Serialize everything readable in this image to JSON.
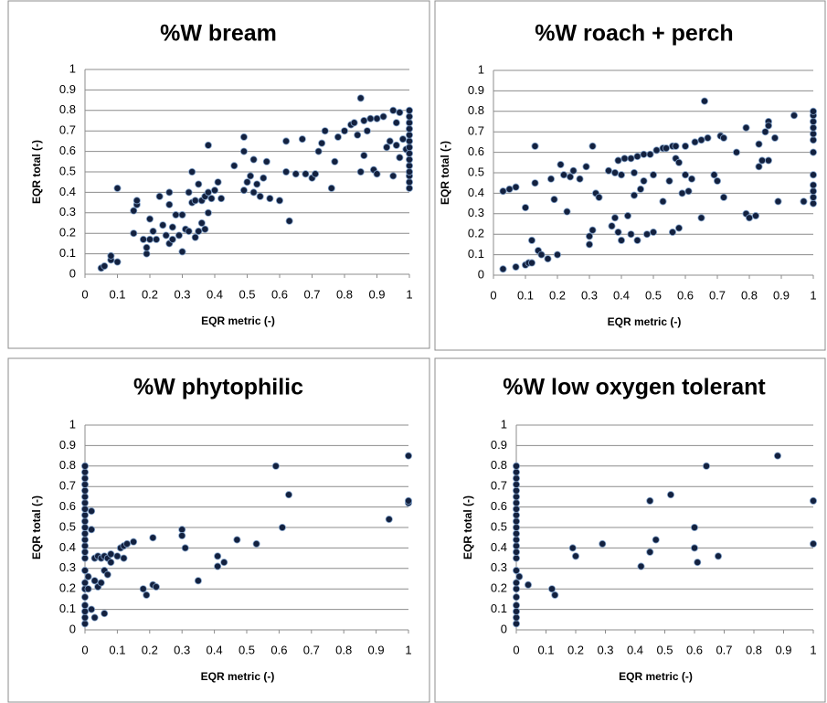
{
  "chart_data": [
    {
      "type": "scatter",
      "title": "%W bream",
      "xlabel": "EQR metric (-)",
      "ylabel": "EQR total (-)",
      "color": "#13213f",
      "grid": true,
      "xlim": [
        0,
        1
      ],
      "ylim": [
        0,
        1
      ],
      "xticks": [
        0,
        0.1,
        0.2,
        0.3,
        0.4,
        0.5,
        0.6,
        0.7,
        0.8,
        0.9,
        1
      ],
      "yticks": [
        0,
        0.1,
        0.2,
        0.3,
        0.4,
        0.5,
        0.6,
        0.7,
        0.8,
        0.9,
        1
      ],
      "x": [
        0.05,
        0.06,
        0.08,
        0.08,
        0.1,
        0.1,
        0.15,
        0.15,
        0.16,
        0.16,
        0.18,
        0.19,
        0.19,
        0.2,
        0.2,
        0.21,
        0.22,
        0.23,
        0.24,
        0.25,
        0.26,
        0.26,
        0.26,
        0.27,
        0.27,
        0.28,
        0.29,
        0.3,
        0.3,
        0.31,
        0.32,
        0.32,
        0.33,
        0.33,
        0.34,
        0.34,
        0.35,
        0.35,
        0.36,
        0.36,
        0.37,
        0.37,
        0.38,
        0.38,
        0.38,
        0.39,
        0.4,
        0.41,
        0.42,
        0.46,
        0.49,
        0.49,
        0.49,
        0.5,
        0.51,
        0.52,
        0.52,
        0.53,
        0.54,
        0.55,
        0.56,
        0.57,
        0.6,
        0.62,
        0.62,
        0.63,
        0.65,
        0.67,
        0.68,
        0.7,
        0.71,
        0.72,
        0.73,
        0.74,
        0.76,
        0.77,
        0.78,
        0.8,
        0.82,
        0.83,
        0.84,
        0.85,
        0.85,
        0.86,
        0.86,
        0.87,
        0.88,
        0.89,
        0.9,
        0.9,
        0.92,
        0.93,
        0.94,
        0.95,
        0.95,
        0.96,
        0.96,
        0.97,
        0.97,
        0.98,
        0.99,
        1,
        1,
        1,
        1,
        1,
        1,
        1,
        1,
        1,
        1,
        1,
        1,
        1,
        1
      ],
      "values": [
        0.03,
        0.04,
        0.07,
        0.09,
        0.06,
        0.42,
        0.2,
        0.31,
        0.34,
        0.36,
        0.17,
        0.1,
        0.13,
        0.17,
        0.27,
        0.21,
        0.17,
        0.38,
        0.24,
        0.19,
        0.15,
        0.34,
        0.4,
        0.17,
        0.23,
        0.29,
        0.19,
        0.11,
        0.29,
        0.22,
        0.21,
        0.4,
        0.35,
        0.5,
        0.18,
        0.36,
        0.21,
        0.44,
        0.25,
        0.36,
        0.22,
        0.38,
        0.63,
        0.4,
        0.3,
        0.37,
        0.41,
        0.45,
        0.37,
        0.53,
        0.41,
        0.6,
        0.67,
        0.45,
        0.48,
        0.56,
        0.4,
        0.44,
        0.38,
        0.47,
        0.55,
        0.37,
        0.36,
        0.65,
        0.5,
        0.26,
        0.49,
        0.66,
        0.49,
        0.47,
        0.49,
        0.6,
        0.64,
        0.7,
        0.42,
        0.55,
        0.67,
        0.7,
        0.73,
        0.74,
        0.68,
        0.86,
        0.5,
        0.75,
        0.58,
        0.7,
        0.76,
        0.51,
        0.76,
        0.49,
        0.77,
        0.62,
        0.65,
        0.8,
        0.48,
        0.74,
        0.63,
        0.79,
        0.57,
        0.66,
        0.61,
        0.42,
        0.45,
        0.48,
        0.5,
        0.53,
        0.56,
        0.59,
        0.62,
        0.65,
        0.68,
        0.71,
        0.74,
        0.77,
        0.8
      ]
    },
    {
      "type": "scatter",
      "title": "%W roach + perch",
      "xlabel": "EQR metric (-)",
      "ylabel": "EQR total (-)",
      "color": "#13213f",
      "grid": true,
      "xlim": [
        0,
        1
      ],
      "ylim": [
        0,
        1
      ],
      "xticks": [
        0,
        0.1,
        0.2,
        0.3,
        0.4,
        0.5,
        0.6,
        0.7,
        0.8,
        0.9,
        1
      ],
      "yticks": [
        0,
        0.1,
        0.2,
        0.3,
        0.4,
        0.5,
        0.6,
        0.7,
        0.8,
        0.9,
        1
      ],
      "x": [
        0.03,
        0.05,
        0.07,
        0.03,
        0.07,
        0.1,
        0.1,
        0.11,
        0.12,
        0.12,
        0.13,
        0.13,
        0.14,
        0.15,
        0.17,
        0.18,
        0.19,
        0.2,
        0.21,
        0.22,
        0.23,
        0.24,
        0.25,
        0.27,
        0.29,
        0.3,
        0.3,
        0.31,
        0.31,
        0.32,
        0.33,
        0.36,
        0.37,
        0.38,
        0.38,
        0.39,
        0.39,
        0.4,
        0.4,
        0.41,
        0.42,
        0.43,
        0.43,
        0.44,
        0.44,
        0.45,
        0.45,
        0.46,
        0.47,
        0.47,
        0.48,
        0.49,
        0.5,
        0.5,
        0.51,
        0.53,
        0.53,
        0.54,
        0.55,
        0.56,
        0.56,
        0.57,
        0.57,
        0.58,
        0.58,
        0.59,
        0.6,
        0.6,
        0.61,
        0.62,
        0.63,
        0.65,
        0.65,
        0.66,
        0.67,
        0.69,
        0.7,
        0.71,
        0.72,
        0.72,
        0.76,
        0.79,
        0.79,
        0.8,
        0.82,
        0.83,
        0.83,
        0.84,
        0.85,
        0.86,
        0.86,
        0.86,
        0.88,
        0.89,
        0.94,
        0.97,
        1,
        1,
        1,
        1,
        1,
        1,
        1,
        1,
        1,
        1,
        1,
        1
      ],
      "values": [
        0.41,
        0.42,
        0.43,
        0.03,
        0.04,
        0.33,
        0.05,
        0.06,
        0.06,
        0.17,
        0.63,
        0.45,
        0.12,
        0.1,
        0.08,
        0.47,
        0.37,
        0.1,
        0.54,
        0.49,
        0.31,
        0.48,
        0.51,
        0.47,
        0.53,
        0.19,
        0.15,
        0.63,
        0.22,
        0.4,
        0.38,
        0.51,
        0.24,
        0.28,
        0.5,
        0.21,
        0.56,
        0.17,
        0.49,
        0.57,
        0.29,
        0.57,
        0.2,
        0.5,
        0.39,
        0.58,
        0.17,
        0.42,
        0.59,
        0.46,
        0.2,
        0.59,
        0.49,
        0.21,
        0.61,
        0.62,
        0.36,
        0.62,
        0.46,
        0.63,
        0.21,
        0.63,
        0.57,
        0.55,
        0.23,
        0.4,
        0.63,
        0.49,
        0.41,
        0.47,
        0.65,
        0.66,
        0.28,
        0.85,
        0.67,
        0.49,
        0.46,
        0.68,
        0.67,
        0.38,
        0.6,
        0.72,
        0.3,
        0.28,
        0.29,
        0.53,
        0.64,
        0.56,
        0.7,
        0.75,
        0.73,
        0.56,
        0.67,
        0.36,
        0.78,
        0.36,
        0.35,
        0.38,
        0.41,
        0.44,
        0.49,
        0.6,
        0.66,
        0.69,
        0.72,
        0.75,
        0.78,
        0.8
      ]
    },
    {
      "type": "scatter",
      "title": "%W phytophilic",
      "xlabel": "EQR metric (-)",
      "ylabel": "EQR total (-)",
      "color": "#13213f",
      "grid": true,
      "xlim": [
        0,
        1
      ],
      "ylim": [
        0,
        1
      ],
      "xticks": [
        0,
        0.1,
        0.2,
        0.3,
        0.4,
        0.5,
        0.6,
        0.7,
        0.8,
        0.9,
        1
      ],
      "yticks": [
        0,
        0.1,
        0.2,
        0.3,
        0.4,
        0.5,
        0.6,
        0.7,
        0.8,
        0.9,
        1
      ],
      "x": [
        0,
        0,
        0,
        0,
        0,
        0,
        0,
        0,
        0,
        0,
        0,
        0,
        0,
        0,
        0,
        0,
        0,
        0,
        0,
        0,
        0,
        0,
        0,
        0,
        0.01,
        0.01,
        0.02,
        0.02,
        0.02,
        0.03,
        0.03,
        0.03,
        0.04,
        0.04,
        0.05,
        0.05,
        0.06,
        0.06,
        0.06,
        0.07,
        0.07,
        0.08,
        0.08,
        0.1,
        0.11,
        0.12,
        0.12,
        0.13,
        0.15,
        0.18,
        0.19,
        0.21,
        0.21,
        0.22,
        0.3,
        0.3,
        0.31,
        0.35,
        0.41,
        0.41,
        0.43,
        0.47,
        0.53,
        0.59,
        0.61,
        0.63,
        0.94,
        1,
        1,
        1
      ],
      "values": [
        0.03,
        0.06,
        0.09,
        0.12,
        0.16,
        0.2,
        0.23,
        0.29,
        0.35,
        0.38,
        0.41,
        0.44,
        0.47,
        0.5,
        0.53,
        0.56,
        0.59,
        0.62,
        0.65,
        0.68,
        0.71,
        0.74,
        0.77,
        0.8,
        0.26,
        0.2,
        0.58,
        0.49,
        0.1,
        0.35,
        0.24,
        0.06,
        0.36,
        0.21,
        0.23,
        0.35,
        0.36,
        0.08,
        0.29,
        0.35,
        0.27,
        0.37,
        0.33,
        0.36,
        0.4,
        0.35,
        0.41,
        0.42,
        0.43,
        0.2,
        0.17,
        0.45,
        0.22,
        0.21,
        0.49,
        0.46,
        0.4,
        0.24,
        0.36,
        0.31,
        0.33,
        0.44,
        0.42,
        0.8,
        0.5,
        0.66,
        0.54,
        0.62,
        0.63,
        0.85
      ]
    },
    {
      "type": "scatter",
      "title": "%W low oxygen tolerant",
      "xlabel": "EQR metric (-)",
      "ylabel": "EQR total (-)",
      "color": "#13213f",
      "grid": true,
      "xlim": [
        0,
        1
      ],
      "ylim": [
        0,
        1
      ],
      "xticks": [
        0,
        0.1,
        0.2,
        0.3,
        0.4,
        0.5,
        0.6,
        0.7,
        0.8,
        0.9,
        1
      ],
      "yticks": [
        0,
        0.1,
        0.2,
        0.3,
        0.4,
        0.5,
        0.6,
        0.7,
        0.8,
        0.9,
        1
      ],
      "x": [
        0,
        0,
        0,
        0,
        0,
        0,
        0,
        0,
        0,
        0,
        0,
        0,
        0,
        0,
        0,
        0,
        0,
        0,
        0,
        0,
        0,
        0,
        0,
        0,
        0.01,
        0.04,
        0.12,
        0.13,
        0.19,
        0.2,
        0.29,
        0.42,
        0.45,
        0.45,
        0.47,
        0.52,
        0.6,
        0.6,
        0.61,
        0.64,
        0.68,
        0.88,
        1,
        1
      ],
      "values": [
        0.03,
        0.06,
        0.09,
        0.12,
        0.16,
        0.2,
        0.23,
        0.29,
        0.35,
        0.38,
        0.41,
        0.44,
        0.47,
        0.5,
        0.53,
        0.56,
        0.59,
        0.62,
        0.65,
        0.68,
        0.71,
        0.74,
        0.77,
        0.8,
        0.26,
        0.22,
        0.2,
        0.17,
        0.4,
        0.36,
        0.42,
        0.31,
        0.38,
        0.63,
        0.44,
        0.66,
        0.5,
        0.4,
        0.33,
        0.8,
        0.36,
        0.85,
        0.63,
        0.42
      ]
    }
  ]
}
